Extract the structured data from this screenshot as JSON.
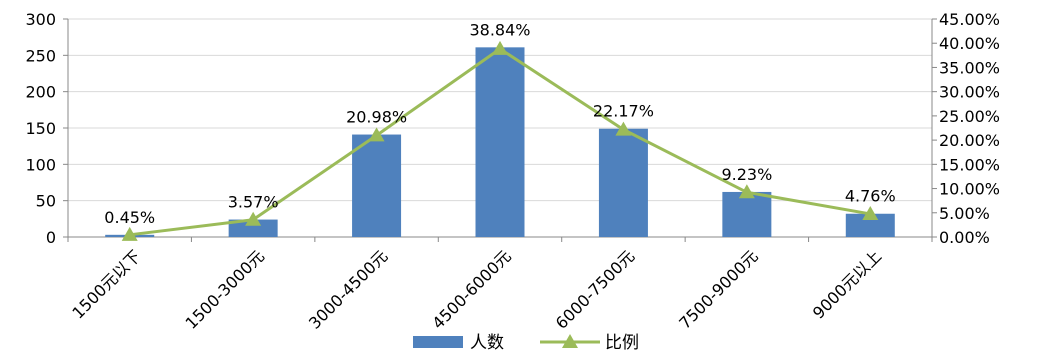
{
  "chart_data": {
    "type": "bar",
    "categories": [
      "1500元以下",
      "1500-3000元",
      "3000-4500元",
      "4500-6000元",
      "6000-7500元",
      "7500-9000元",
      "9000元以上"
    ],
    "series": [
      {
        "name": "人数",
        "type": "bar",
        "axis": "left",
        "color": "#4F81BD",
        "values": [
          3,
          24,
          141,
          261,
          149,
          62,
          32
        ]
      },
      {
        "name": "比例",
        "type": "line",
        "axis": "right",
        "color": "#9BBB59",
        "marker": "triangle",
        "values": [
          0.45,
          3.57,
          20.98,
          38.84,
          22.17,
          9.23,
          4.76
        ],
        "data_labels": [
          "0.45%",
          "3.57%",
          "20.98%",
          "38.84%",
          "22.17%",
          "9.23%",
          "4.76%"
        ]
      }
    ],
    "left_axis": {
      "ylim": [
        0,
        300
      ],
      "ticks": [
        "0",
        "50",
        "100",
        "150",
        "200",
        "250",
        "300"
      ]
    },
    "right_axis": {
      "ylim": [
        0,
        45
      ],
      "ticks": [
        "0.00%",
        "5.00%",
        "10.00%",
        "15.00%",
        "20.00%",
        "25.00%",
        "30.00%",
        "35.00%",
        "40.00%",
        "45.00%"
      ]
    },
    "title": "",
    "xlabel": "",
    "ylabel": "",
    "grid": true,
    "legend": {
      "position": "bottom",
      "items": [
        "人数",
        "比例"
      ]
    }
  }
}
